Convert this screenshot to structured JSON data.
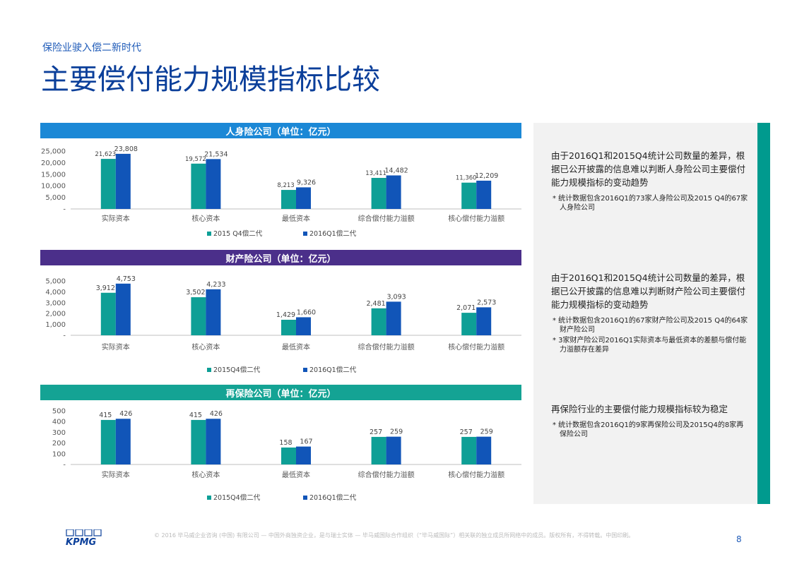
{
  "header": {
    "subtitle": "保险业驶入偿二新时代",
    "title": "主要偿付能力规模指标比较"
  },
  "colors": {
    "header_life": "#1b88d6",
    "header_property": "#4b2f8a",
    "header_reinsurance": "#14a394",
    "series_2015": "#0e9f96",
    "series_2016": "#1155b8"
  },
  "chart_data": [
    {
      "type": "bar",
      "title": "人身险公司（单位：亿元）",
      "categories": [
        "实际资本",
        "核心资本",
        "最低资本",
        "综合偿付能力溢额",
        "核心偿付能力溢额"
      ],
      "series": [
        {
          "name": "2015 Q4偿二代",
          "values": [
            21623,
            19572,
            8213,
            13411,
            11360
          ],
          "labels": [
            "21,623",
            "19,572",
            "8,213",
            "13,411",
            "11,360"
          ]
        },
        {
          "name": "2016Q1偿二代",
          "values": [
            23808,
            21534,
            9326,
            14482,
            12209
          ],
          "labels": [
            "23,808",
            "21,534",
            "9,326",
            "14,482",
            "12,209"
          ]
        }
      ],
      "yticks": [
        0,
        5000,
        10000,
        15000,
        20000,
        25000
      ],
      "ytick_labels": [
        "-",
        "5,000",
        "10,000",
        "15,000",
        "20,000",
        "25,000"
      ],
      "ylim": [
        0,
        25000
      ]
    },
    {
      "type": "bar",
      "title": "财产险公司（单位：亿元）",
      "categories": [
        "实际资本",
        "核心资本",
        "最低资本",
        "综合偿付能力溢额",
        "核心偿付能力溢额"
      ],
      "series": [
        {
          "name": "2015Q4偿二代",
          "values": [
            3912,
            3502,
            1429,
            2481,
            2071
          ],
          "labels": [
            "3,912",
            "3,502",
            "1,429",
            "2,481",
            "2,071"
          ]
        },
        {
          "name": "2016Q1偿二代",
          "values": [
            4753,
            4233,
            1660,
            3093,
            2573
          ],
          "labels": [
            "4,753",
            "4,233",
            "1,660",
            "3,093",
            "2,573"
          ]
        }
      ],
      "yticks": [
        0,
        1000,
        2000,
        3000,
        4000,
        5000
      ],
      "ytick_labels": [
        "-",
        "1,000",
        "2,000",
        "3,000",
        "4,000",
        "5,000"
      ],
      "ylim": [
        0,
        5000
      ]
    },
    {
      "type": "bar",
      "title": "再保险公司（单位：亿元）",
      "categories": [
        "实际资本",
        "核心资本",
        "最低资本",
        "综合偿付能力溢额",
        "核心偿付能力溢额"
      ],
      "series": [
        {
          "name": "2015Q4偿二代",
          "values": [
            415,
            415,
            158,
            257,
            257
          ],
          "labels": [
            "415",
            "415",
            "158",
            "257",
            "257"
          ]
        },
        {
          "name": "2016Q1偿二代",
          "values": [
            426,
            426,
            167,
            259,
            259
          ],
          "labels": [
            "426",
            "426",
            "167",
            "259",
            "259"
          ]
        }
      ],
      "yticks": [
        0,
        100,
        200,
        300,
        400,
        500
      ],
      "ytick_labels": [
        "-",
        "100",
        "200",
        "300",
        "400",
        "500"
      ],
      "ylim": [
        0,
        500
      ]
    }
  ],
  "notes": [
    {
      "main": "由于2016Q1和2015Q4统计公司数量的差异，根据已公开披露的信息难以判断人身险公司主要偿付能力规模指标的变动趋势",
      "subs": [
        "* 统计数据包含2016Q1的73家人身险公司及2015 Q4的67家人身险公司"
      ]
    },
    {
      "main": "由于2016Q1和2015Q4统计公司数量的差异，根据已公开披露的信息难以判断财产险公司主要偿付能力规模指标的变动趋势",
      "subs": [
        "* 统计数据包含2016Q1的67家财产险公司及2015 Q4的64家财产险公司",
        "*  3家财产险公司2016Q1实际资本与最低资本的差额与偿付能力溢额存在差异"
      ]
    },
    {
      "main": "再保险行业的主要偿付能力规模指标较为稳定",
      "subs": [
        "* 统计数据包含2016Q1的9家再保险公司及2015Q4的8家再保险公司"
      ]
    }
  ],
  "footer": {
    "logo": "KPMG",
    "copyright": "© 2016 毕马威企业咨询 (中国) 有限公司 — 中国外商独资企业，是与瑞士实体 — 毕马威国际合作组织（“毕马威国际”）相关联的独立成员所网络中的成员。版权所有，不得转载。中国印刷。",
    "page_number": "8"
  }
}
